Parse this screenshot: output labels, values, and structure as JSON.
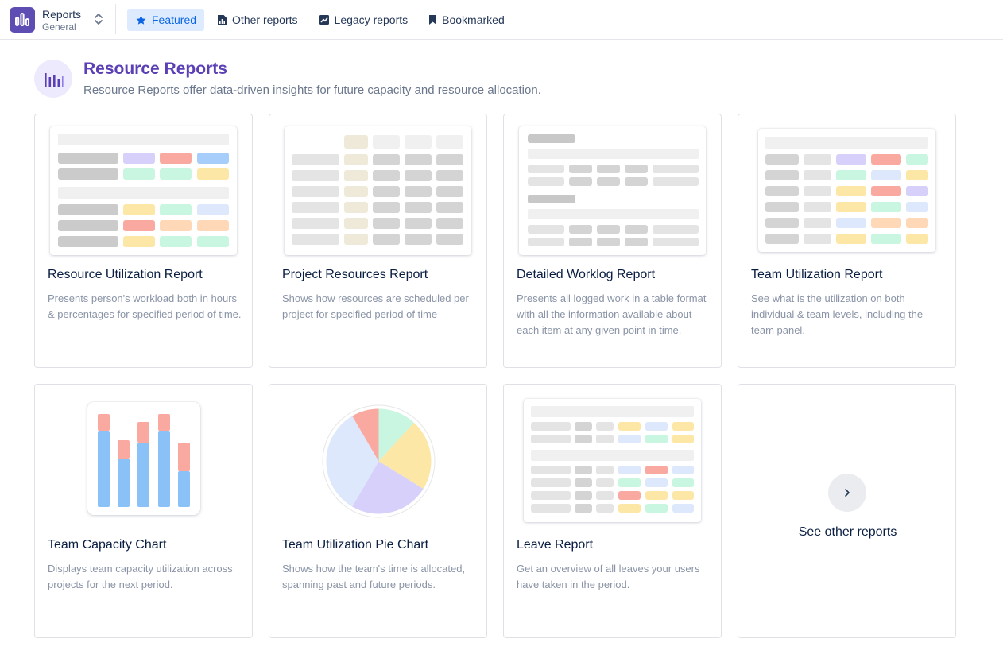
{
  "app": {
    "title": "Reports",
    "subtitle": "General"
  },
  "nav": {
    "tabs": [
      {
        "label": "Featured",
        "icon": "star-icon",
        "active": true
      },
      {
        "label": "Other reports",
        "icon": "bar-report-icon",
        "active": false
      },
      {
        "label": "Legacy reports",
        "icon": "legacy-report-icon",
        "active": false
      },
      {
        "label": "Bookmarked",
        "icon": "bookmark-icon",
        "active": false
      }
    ]
  },
  "header": {
    "title": "Resource Reports",
    "subtitle": "Resource Reports offer data-driven insights for future capacity and resource allocation."
  },
  "cards": [
    {
      "title": "Resource Utilization Report",
      "description": "Presents person's workload both in hours & percentages for specified period of time."
    },
    {
      "title": "Project Resources Report",
      "description": "Shows how resources are scheduled per project for specified period of time"
    },
    {
      "title": "Detailed Worklog Report",
      "description": "Presents all logged work in a table format with all the information available about each item at any given point in time."
    },
    {
      "title": "Team Utilization Report",
      "description": "See what is the utilization on both individual & team levels, including the team panel."
    },
    {
      "title": "Team Capacity Chart",
      "description": "Displays team capacity utilization across projects for the next period."
    },
    {
      "title": "Team Utilization Pie Chart",
      "description": "Shows how the team's time is allocated, spanning past and future periods."
    },
    {
      "title": "Leave Report",
      "description": "Get an overview of all leaves your users have taken in the period."
    }
  ],
  "see_other": {
    "label": "See other reports",
    "icon": "chevron-right-icon"
  },
  "colors": {
    "accent": "#5b3fb5",
    "active_tab_bg": "#deebff",
    "active_tab_text": "#0c66e4",
    "cell_purple": "#d7d0fb",
    "cell_red": "#f9a9a0",
    "cell_blue": "#a7cdfb",
    "cell_green": "#c8f6e0",
    "cell_yellow": "#fde7a7",
    "cell_orange": "#ffd8b7",
    "cell_lightblue": "#dde8fd",
    "cell_grey": "#d4d4d4",
    "cell_beige": "#efe9da"
  }
}
